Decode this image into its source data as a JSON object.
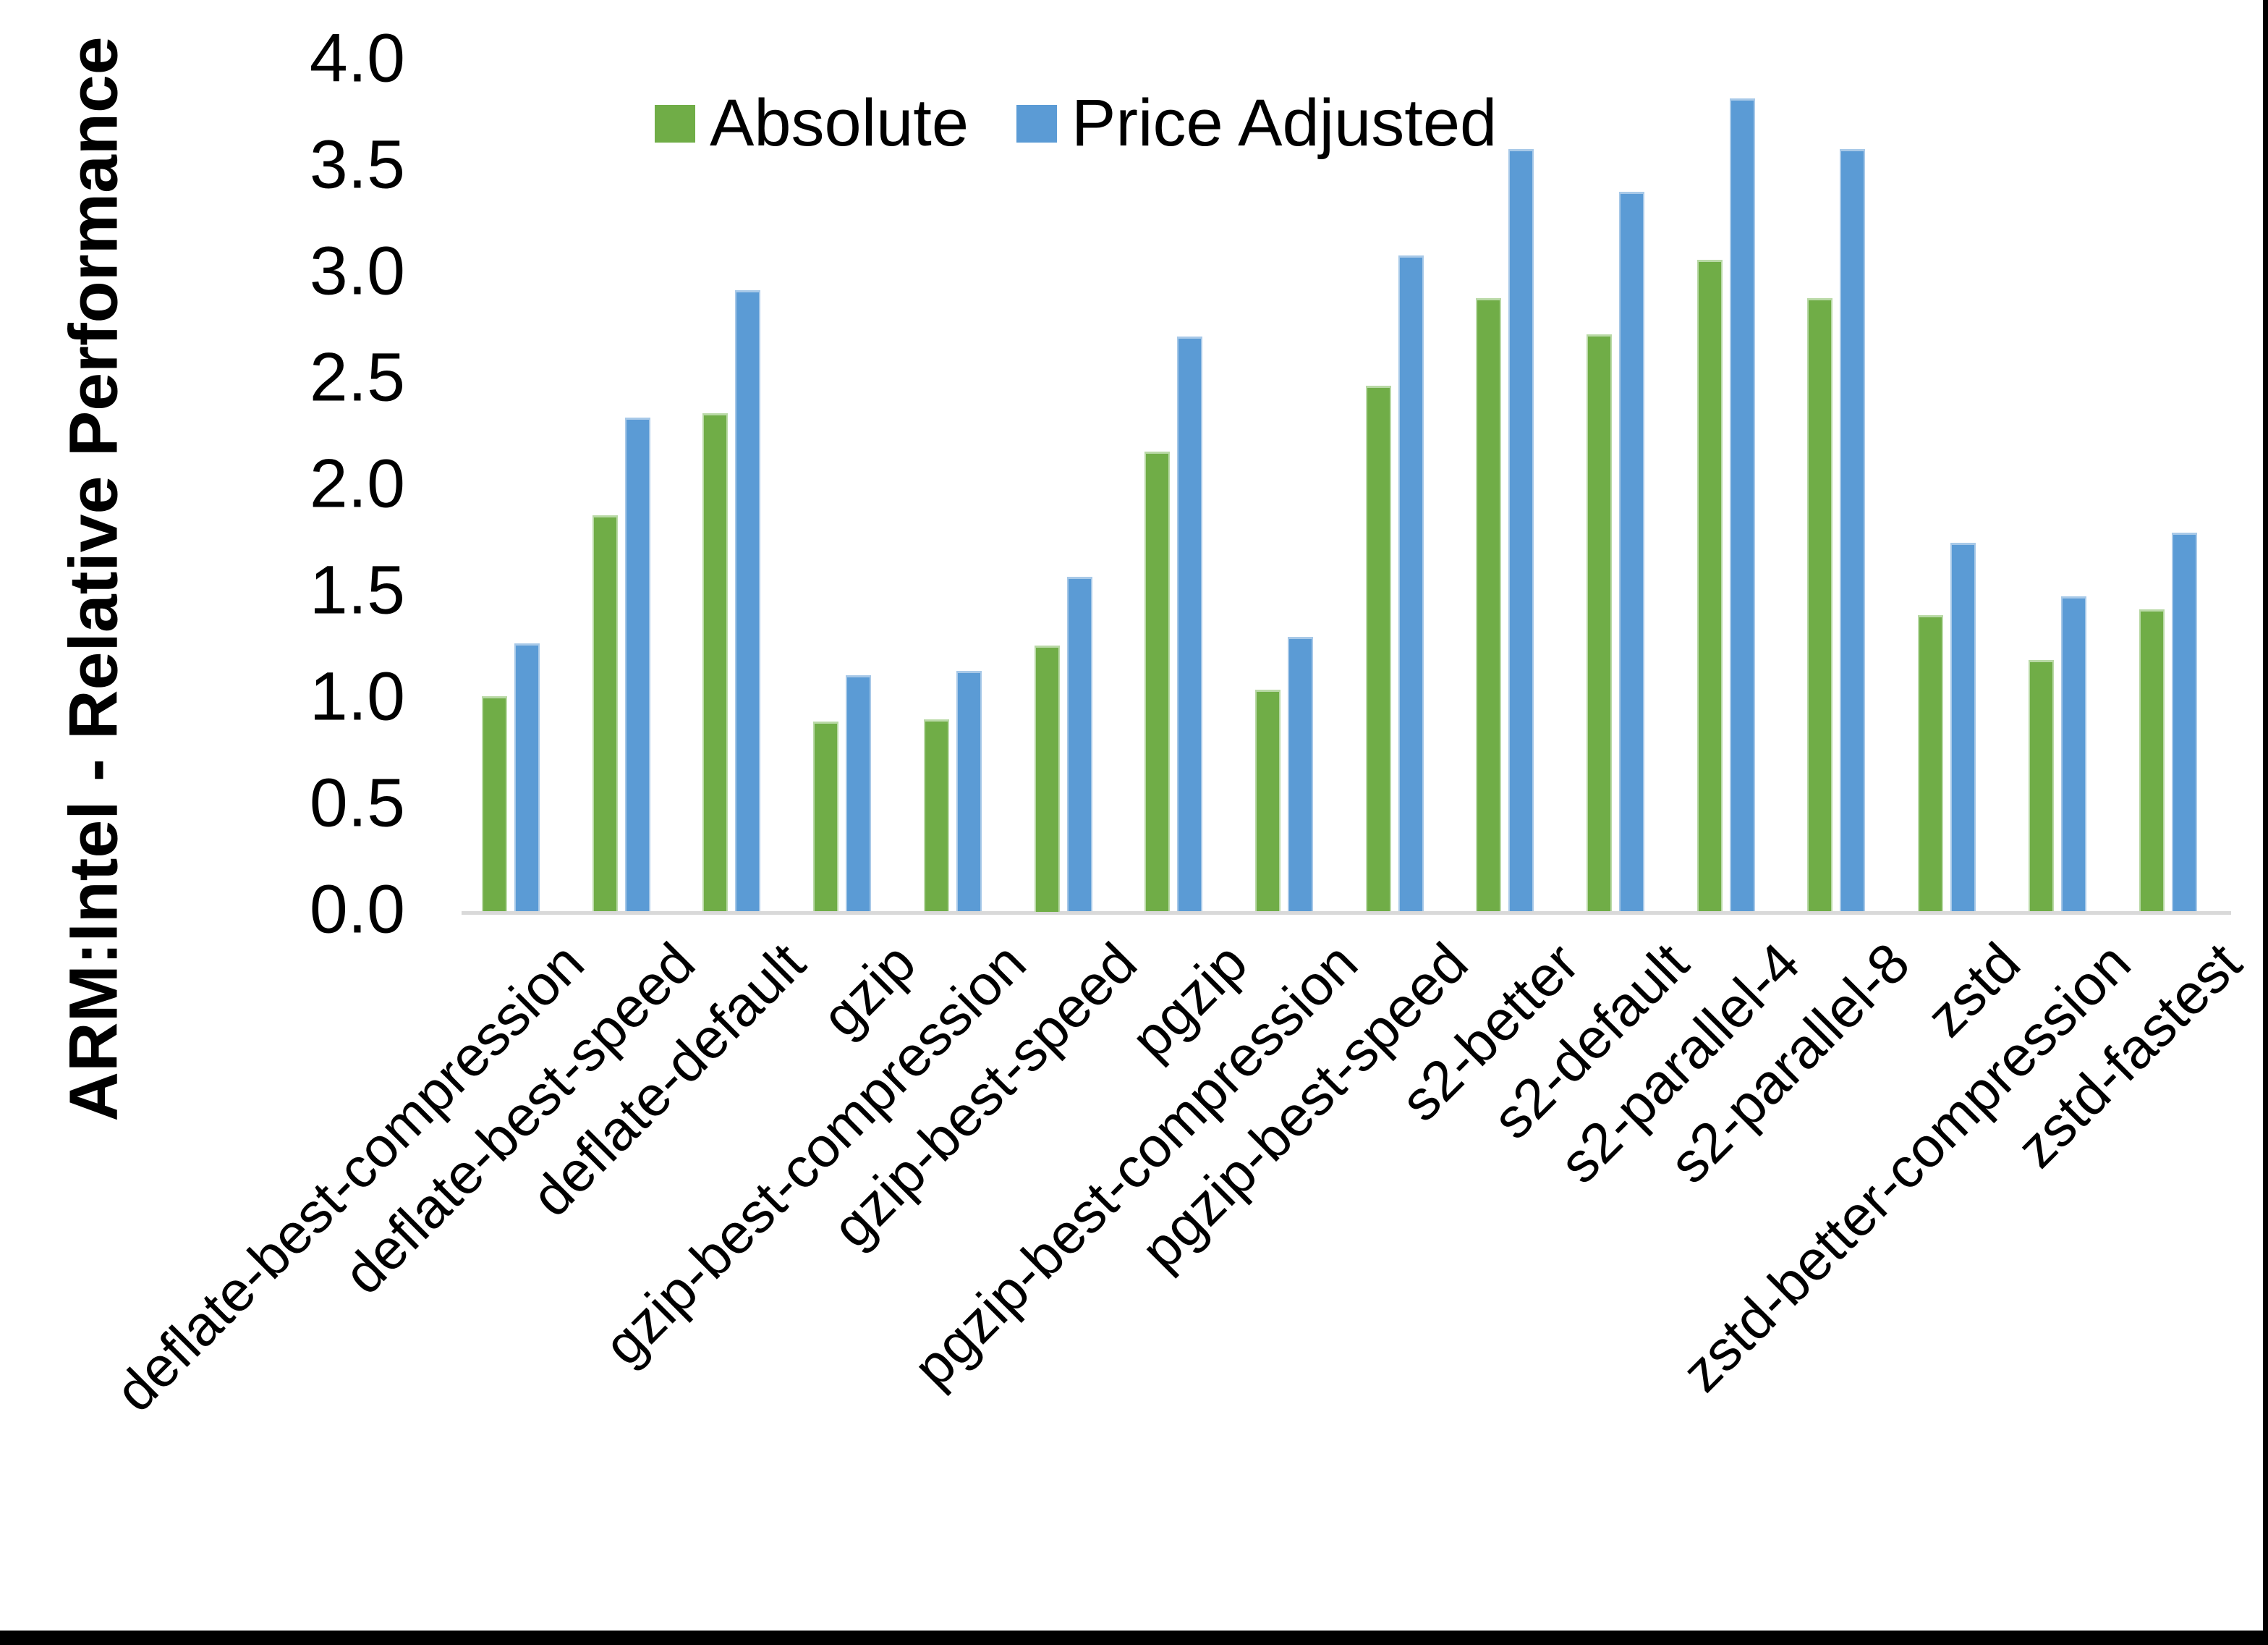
{
  "figure": {
    "background": "#ffffff",
    "border_right_color": "#000000",
    "border_bottom_color": "#000000"
  },
  "chart_data": {
    "type": "bar",
    "title": "",
    "xlabel": "",
    "ylabel": "ARM:Intel - Relative Performance",
    "ylim": [
      0.0,
      4.0
    ],
    "ytick_step": 0.5,
    "ytick_labels": [
      "0.0",
      "0.5",
      "1.0",
      "1.5",
      "2.0",
      "2.5",
      "3.0",
      "3.5",
      "4.0"
    ],
    "grid": false,
    "legend_position": "top-center-inside",
    "axis_line_color": "#d9d9d9",
    "text_color": "#000000",
    "categories": [
      "deflate-best-compression",
      "deflate-best-speed",
      "deflate-default",
      "gzip",
      "gzip-best-compression",
      "gzip-best-speed",
      "pgzip",
      "pgzip-best-compression",
      "pgzip-best-speed",
      "s2-better",
      "s2-default",
      "s2-parallel-4",
      "s2-parallel-8",
      "zstd",
      "zstd-better-compression",
      "zstd-fastest"
    ],
    "series": [
      {
        "name": "Absolute",
        "color": "#70AD47",
        "edge_color": "#B9D9A6",
        "values": [
          1.01,
          1.86,
          2.34,
          0.89,
          0.9,
          1.25,
          2.16,
          1.04,
          2.47,
          2.88,
          2.71,
          3.06,
          2.88,
          1.39,
          1.18,
          1.42
        ]
      },
      {
        "name": "Price Adjusted",
        "color": "#5B9BD5",
        "edge_color": "#A8C9E8",
        "values": [
          1.26,
          2.32,
          2.92,
          1.11,
          1.13,
          1.57,
          2.7,
          1.29,
          3.08,
          3.58,
          3.38,
          3.82,
          3.58,
          1.73,
          1.48,
          1.78
        ]
      }
    ]
  }
}
